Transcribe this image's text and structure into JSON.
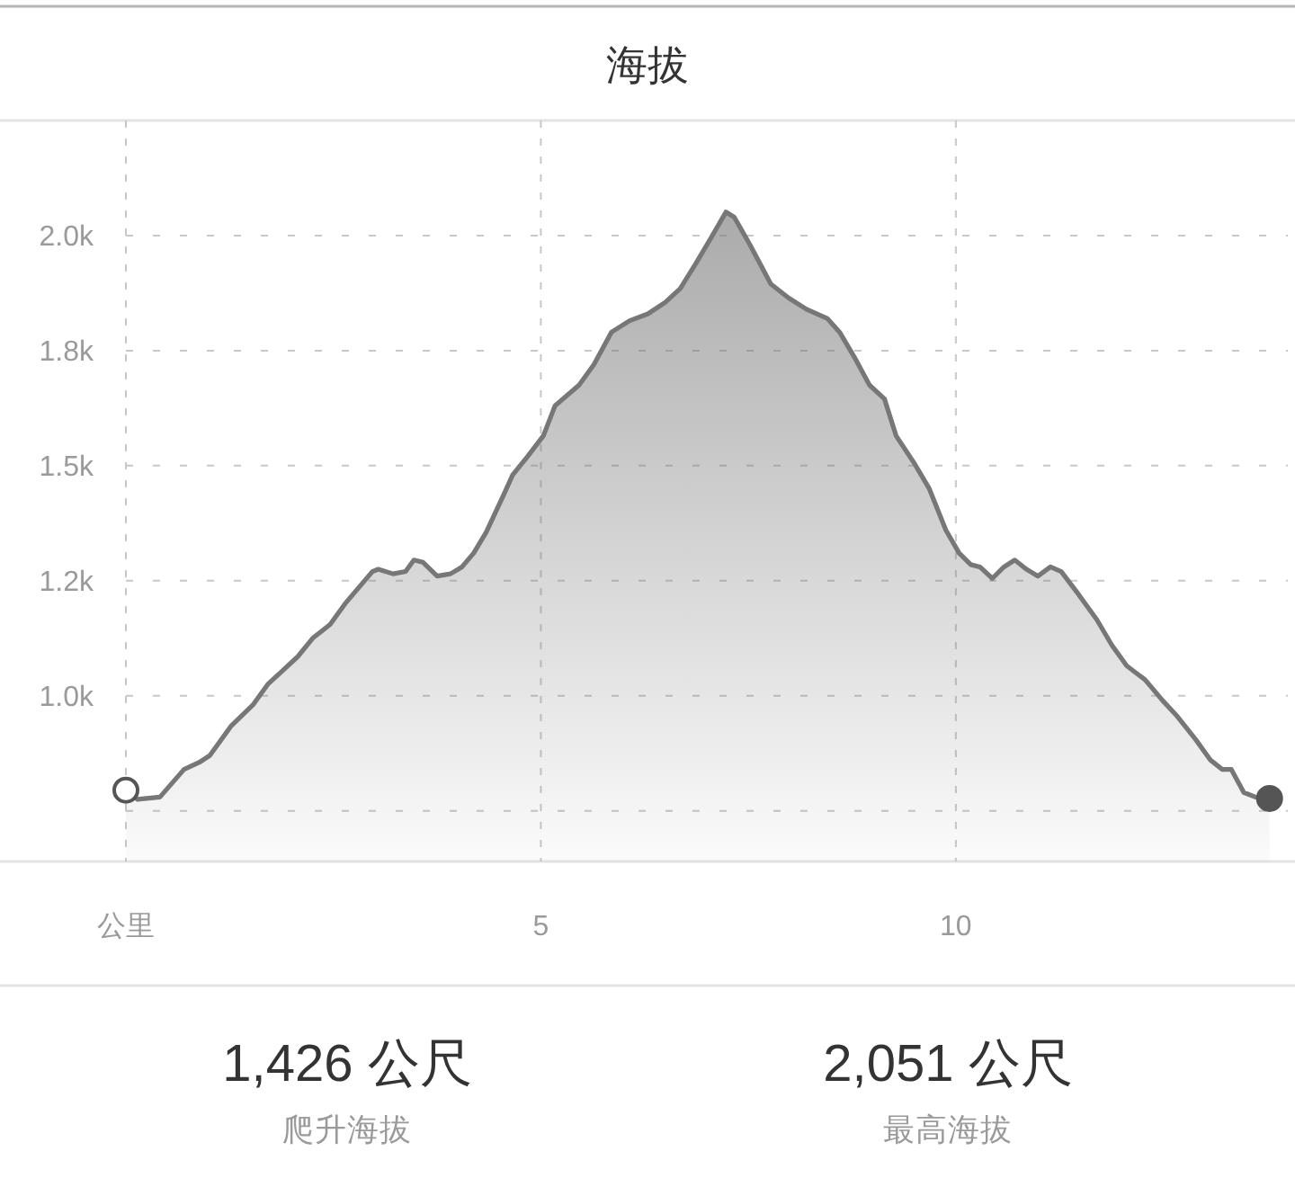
{
  "chart_data": {
    "type": "area",
    "title": "海拔",
    "series": [
      {
        "color": "#777777",
        "x": [
          0,
          0.14,
          0.41,
          0.7,
          0.88,
          1.01,
          1.27,
          1.53,
          1.71,
          1.89,
          2.07,
          2.25,
          2.46,
          2.64,
          2.97,
          3.04,
          3.22,
          3.37,
          3.47,
          3.58,
          3.75,
          3.91,
          4.05,
          4.19,
          4.34,
          4.56,
          4.66,
          4.84,
          5.03,
          5.17,
          5.46,
          5.64,
          5.85,
          6.07,
          6.29,
          6.5,
          6.68,
          6.87,
          7.05,
          7.23,
          7.33,
          7.52,
          7.77,
          7.98,
          8.2,
          8.45,
          8.6,
          8.78,
          8.96,
          9.14,
          9.28,
          9.5,
          9.68,
          9.88,
          10.04,
          10.18,
          10.29,
          10.44,
          10.58,
          10.71,
          10.85,
          10.99,
          11.14,
          11.27,
          11.48,
          11.7,
          11.88,
          12.06,
          12.28,
          12.49,
          12.67,
          12.89,
          13.07,
          13.21,
          13.32,
          13.47,
          13.61,
          13.78
        ],
        "values": [
          795,
          775,
          780,
          840,
          855,
          870,
          935,
          980,
          1025,
          1055,
          1085,
          1125,
          1155,
          1200,
          1270,
          1275,
          1265,
          1270,
          1295,
          1290,
          1260,
          1265,
          1280,
          1310,
          1355,
          1440,
          1480,
          1520,
          1565,
          1630,
          1675,
          1720,
          1790,
          1815,
          1830,
          1855,
          1885,
          1940,
          1995,
          2051,
          2040,
          1980,
          1895,
          1865,
          1840,
          1820,
          1790,
          1735,
          1675,
          1645,
          1565,
          1505,
          1450,
          1360,
          1310,
          1285,
          1280,
          1255,
          1280,
          1295,
          1275,
          1260,
          1280,
          1270,
          1220,
          1165,
          1110,
          1065,
          1035,
          990,
          955,
          905,
          860,
          840,
          840,
          790,
          780,
          777
        ]
      },
      {
        "type": "scatter",
        "marker": "circle",
        "color": "#555555",
        "colors": [
          "#ffffff",
          "#555555"
        ],
        "x": [
          0,
          13.78
        ],
        "values": [
          795,
          777
        ]
      }
    ],
    "xlim": [
      0,
      14
    ],
    "ylim": [
      640,
      2250
    ],
    "xticks": [
      {
        "value": 0,
        "label": "公里"
      },
      5,
      10
    ],
    "yticks": [
      {
        "value": 750,
        "label": null
      },
      {
        "value": 1000,
        "label": "1.0k"
      },
      {
        "value": 1250,
        "label": "1.2k"
      },
      {
        "value": 1500,
        "label": "1.5k"
      },
      {
        "value": 1750,
        "label": "1.8k"
      },
      {
        "value": 2000,
        "label": "2.0k"
      }
    ],
    "grid": true,
    "annotations": [
      "1,426 公尺",
      "爬升海拔",
      "2,051 公尺",
      "最高海拔"
    ]
  }
}
